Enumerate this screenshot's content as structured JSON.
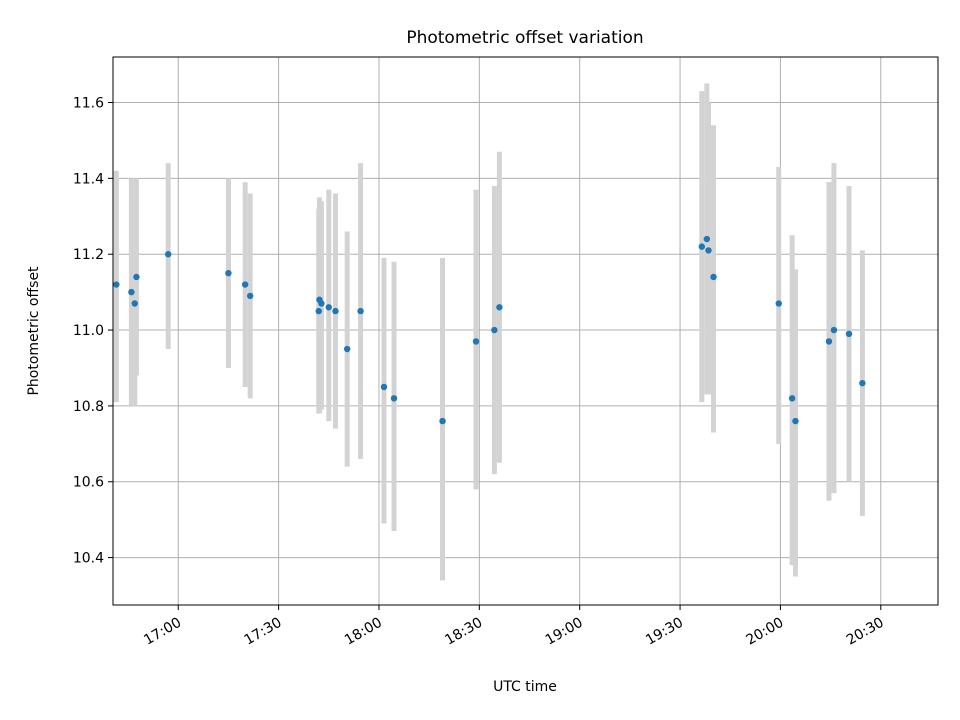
{
  "chart_data": {
    "type": "scatter",
    "title": "Photometric offset variation",
    "xlabel": "UTC time",
    "ylabel": "Photometric offset",
    "x_unit": "minutes",
    "x_ticks": [
      {
        "value": 1020,
        "label": "17:00"
      },
      {
        "value": 1050,
        "label": "17:30"
      },
      {
        "value": 1080,
        "label": "18:00"
      },
      {
        "value": 1110,
        "label": "18:30"
      },
      {
        "value": 1140,
        "label": "19:00"
      },
      {
        "value": 1170,
        "label": "19:30"
      },
      {
        "value": 1200,
        "label": "20:00"
      },
      {
        "value": 1230,
        "label": "20:30"
      }
    ],
    "y_ticks": [
      {
        "value": 10.4,
        "label": "10.4"
      },
      {
        "value": 10.6,
        "label": "10.6"
      },
      {
        "value": 10.8,
        "label": "10.8"
      },
      {
        "value": 11.0,
        "label": "11.0"
      },
      {
        "value": 11.2,
        "label": "11.2"
      },
      {
        "value": 11.4,
        "label": "11.4"
      },
      {
        "value": 11.6,
        "label": "11.6"
      }
    ],
    "xlim": [
      1000.5,
      1247.1
    ],
    "ylim": [
      10.275,
      11.72
    ],
    "grid": true,
    "colors": {
      "points": "#1f77b4",
      "errorbars": "#d3d3d3"
    },
    "points": [
      {
        "x": 1001.5,
        "y": 11.12,
        "lo": 10.81,
        "hi": 11.42
      },
      {
        "x": 1006.0,
        "y": 11.1,
        "lo": 10.8,
        "hi": 11.4
      },
      {
        "x": 1007.0,
        "y": 11.07,
        "lo": 10.8,
        "hi": 11.33
      },
      {
        "x": 1007.5,
        "y": 11.14,
        "lo": 10.88,
        "hi": 11.4
      },
      {
        "x": 1017.0,
        "y": 11.2,
        "lo": 10.95,
        "hi": 11.44
      },
      {
        "x": 1035.0,
        "y": 11.15,
        "lo": 10.9,
        "hi": 11.4
      },
      {
        "x": 1040.0,
        "y": 11.12,
        "lo": 10.85,
        "hi": 11.39
      },
      {
        "x": 1041.5,
        "y": 11.09,
        "lo": 10.82,
        "hi": 11.36
      },
      {
        "x": 1062.0,
        "y": 11.05,
        "lo": 10.78,
        "hi": 11.32
      },
      {
        "x": 1062.2,
        "y": 11.08,
        "lo": 10.78,
        "hi": 11.35
      },
      {
        "x": 1062.8,
        "y": 11.07,
        "lo": 10.79,
        "hi": 11.34
      },
      {
        "x": 1065.0,
        "y": 11.06,
        "lo": 10.76,
        "hi": 11.37
      },
      {
        "x": 1067.0,
        "y": 11.05,
        "lo": 10.74,
        "hi": 11.36
      },
      {
        "x": 1070.5,
        "y": 10.95,
        "lo": 10.64,
        "hi": 11.26
      },
      {
        "x": 1074.5,
        "y": 11.05,
        "lo": 10.66,
        "hi": 11.44
      },
      {
        "x": 1081.5,
        "y": 10.85,
        "lo": 10.49,
        "hi": 11.19
      },
      {
        "x": 1084.5,
        "y": 10.82,
        "lo": 10.47,
        "hi": 11.18
      },
      {
        "x": 1099.0,
        "y": 10.76,
        "lo": 10.34,
        "hi": 11.19
      },
      {
        "x": 1109.0,
        "y": 10.97,
        "lo": 10.58,
        "hi": 11.37
      },
      {
        "x": 1114.5,
        "y": 11.0,
        "lo": 10.62,
        "hi": 11.38
      },
      {
        "x": 1116.0,
        "y": 11.06,
        "lo": 10.65,
        "hi": 11.47
      },
      {
        "x": 1176.5,
        "y": 11.22,
        "lo": 10.81,
        "hi": 11.63
      },
      {
        "x": 1178.0,
        "y": 11.24,
        "lo": 10.83,
        "hi": 11.65
      },
      {
        "x": 1178.5,
        "y": 11.21,
        "lo": 10.83,
        "hi": 11.6
      },
      {
        "x": 1180.0,
        "y": 11.14,
        "lo": 10.73,
        "hi": 11.54
      },
      {
        "x": 1199.5,
        "y": 11.07,
        "lo": 10.7,
        "hi": 11.43
      },
      {
        "x": 1203.5,
        "y": 10.82,
        "lo": 10.38,
        "hi": 11.25
      },
      {
        "x": 1204.5,
        "y": 10.76,
        "lo": 10.35,
        "hi": 11.16
      },
      {
        "x": 1214.5,
        "y": 10.97,
        "lo": 10.55,
        "hi": 11.39
      },
      {
        "x": 1216.0,
        "y": 11.0,
        "lo": 10.57,
        "hi": 11.44
      },
      {
        "x": 1220.5,
        "y": 10.99,
        "lo": 10.6,
        "hi": 11.38
      },
      {
        "x": 1224.5,
        "y": 10.86,
        "lo": 10.51,
        "hi": 11.21
      }
    ]
  }
}
